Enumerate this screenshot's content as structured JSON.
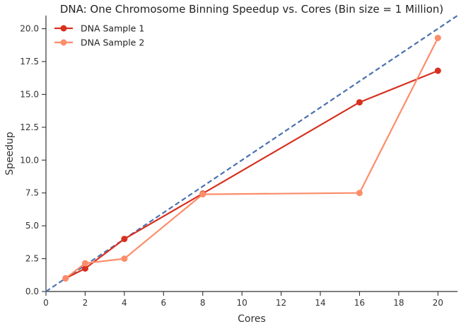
{
  "chart_data": {
    "type": "line",
    "title": "DNA: One Chromosome Binning Speedup vs. Cores (Bin size = 1 Million)",
    "xlabel": "Cores",
    "ylabel": "Speedup",
    "xlim": [
      0,
      21
    ],
    "ylim": [
      0,
      21
    ],
    "xticks": [
      0,
      2,
      4,
      6,
      8,
      10,
      12,
      14,
      16,
      18,
      20
    ],
    "yticks": [
      0.0,
      2.5,
      5.0,
      7.5,
      10.0,
      12.5,
      15.0,
      17.5,
      20.0
    ],
    "xtick_labels": [
      "0",
      "2",
      "4",
      "6",
      "8",
      "10",
      "12",
      "14",
      "16",
      "18",
      "20"
    ],
    "ytick_labels": [
      "0.0",
      "2.5",
      "5.0",
      "7.5",
      "10.0",
      "12.5",
      "15.0",
      "17.5",
      "20.0"
    ],
    "grid": false,
    "legend_position": "top-left",
    "series": [
      {
        "name": "DNA Sample 1",
        "color": "#d7301f",
        "x": [
          1,
          2,
          4,
          8,
          16,
          20
        ],
        "y": [
          1.0,
          1.75,
          4.0,
          7.45,
          14.4,
          16.8
        ]
      },
      {
        "name": "DNA Sample 2",
        "color": "#fc8d6a",
        "x": [
          1,
          2,
          4,
          8,
          16,
          20
        ],
        "y": [
          1.0,
          2.15,
          2.5,
          7.4,
          7.5,
          19.3
        ]
      }
    ],
    "reference_line": {
      "style": "dashed",
      "color": "#4c72b0",
      "x": [
        0,
        21
      ],
      "y": [
        0,
        21
      ]
    }
  }
}
